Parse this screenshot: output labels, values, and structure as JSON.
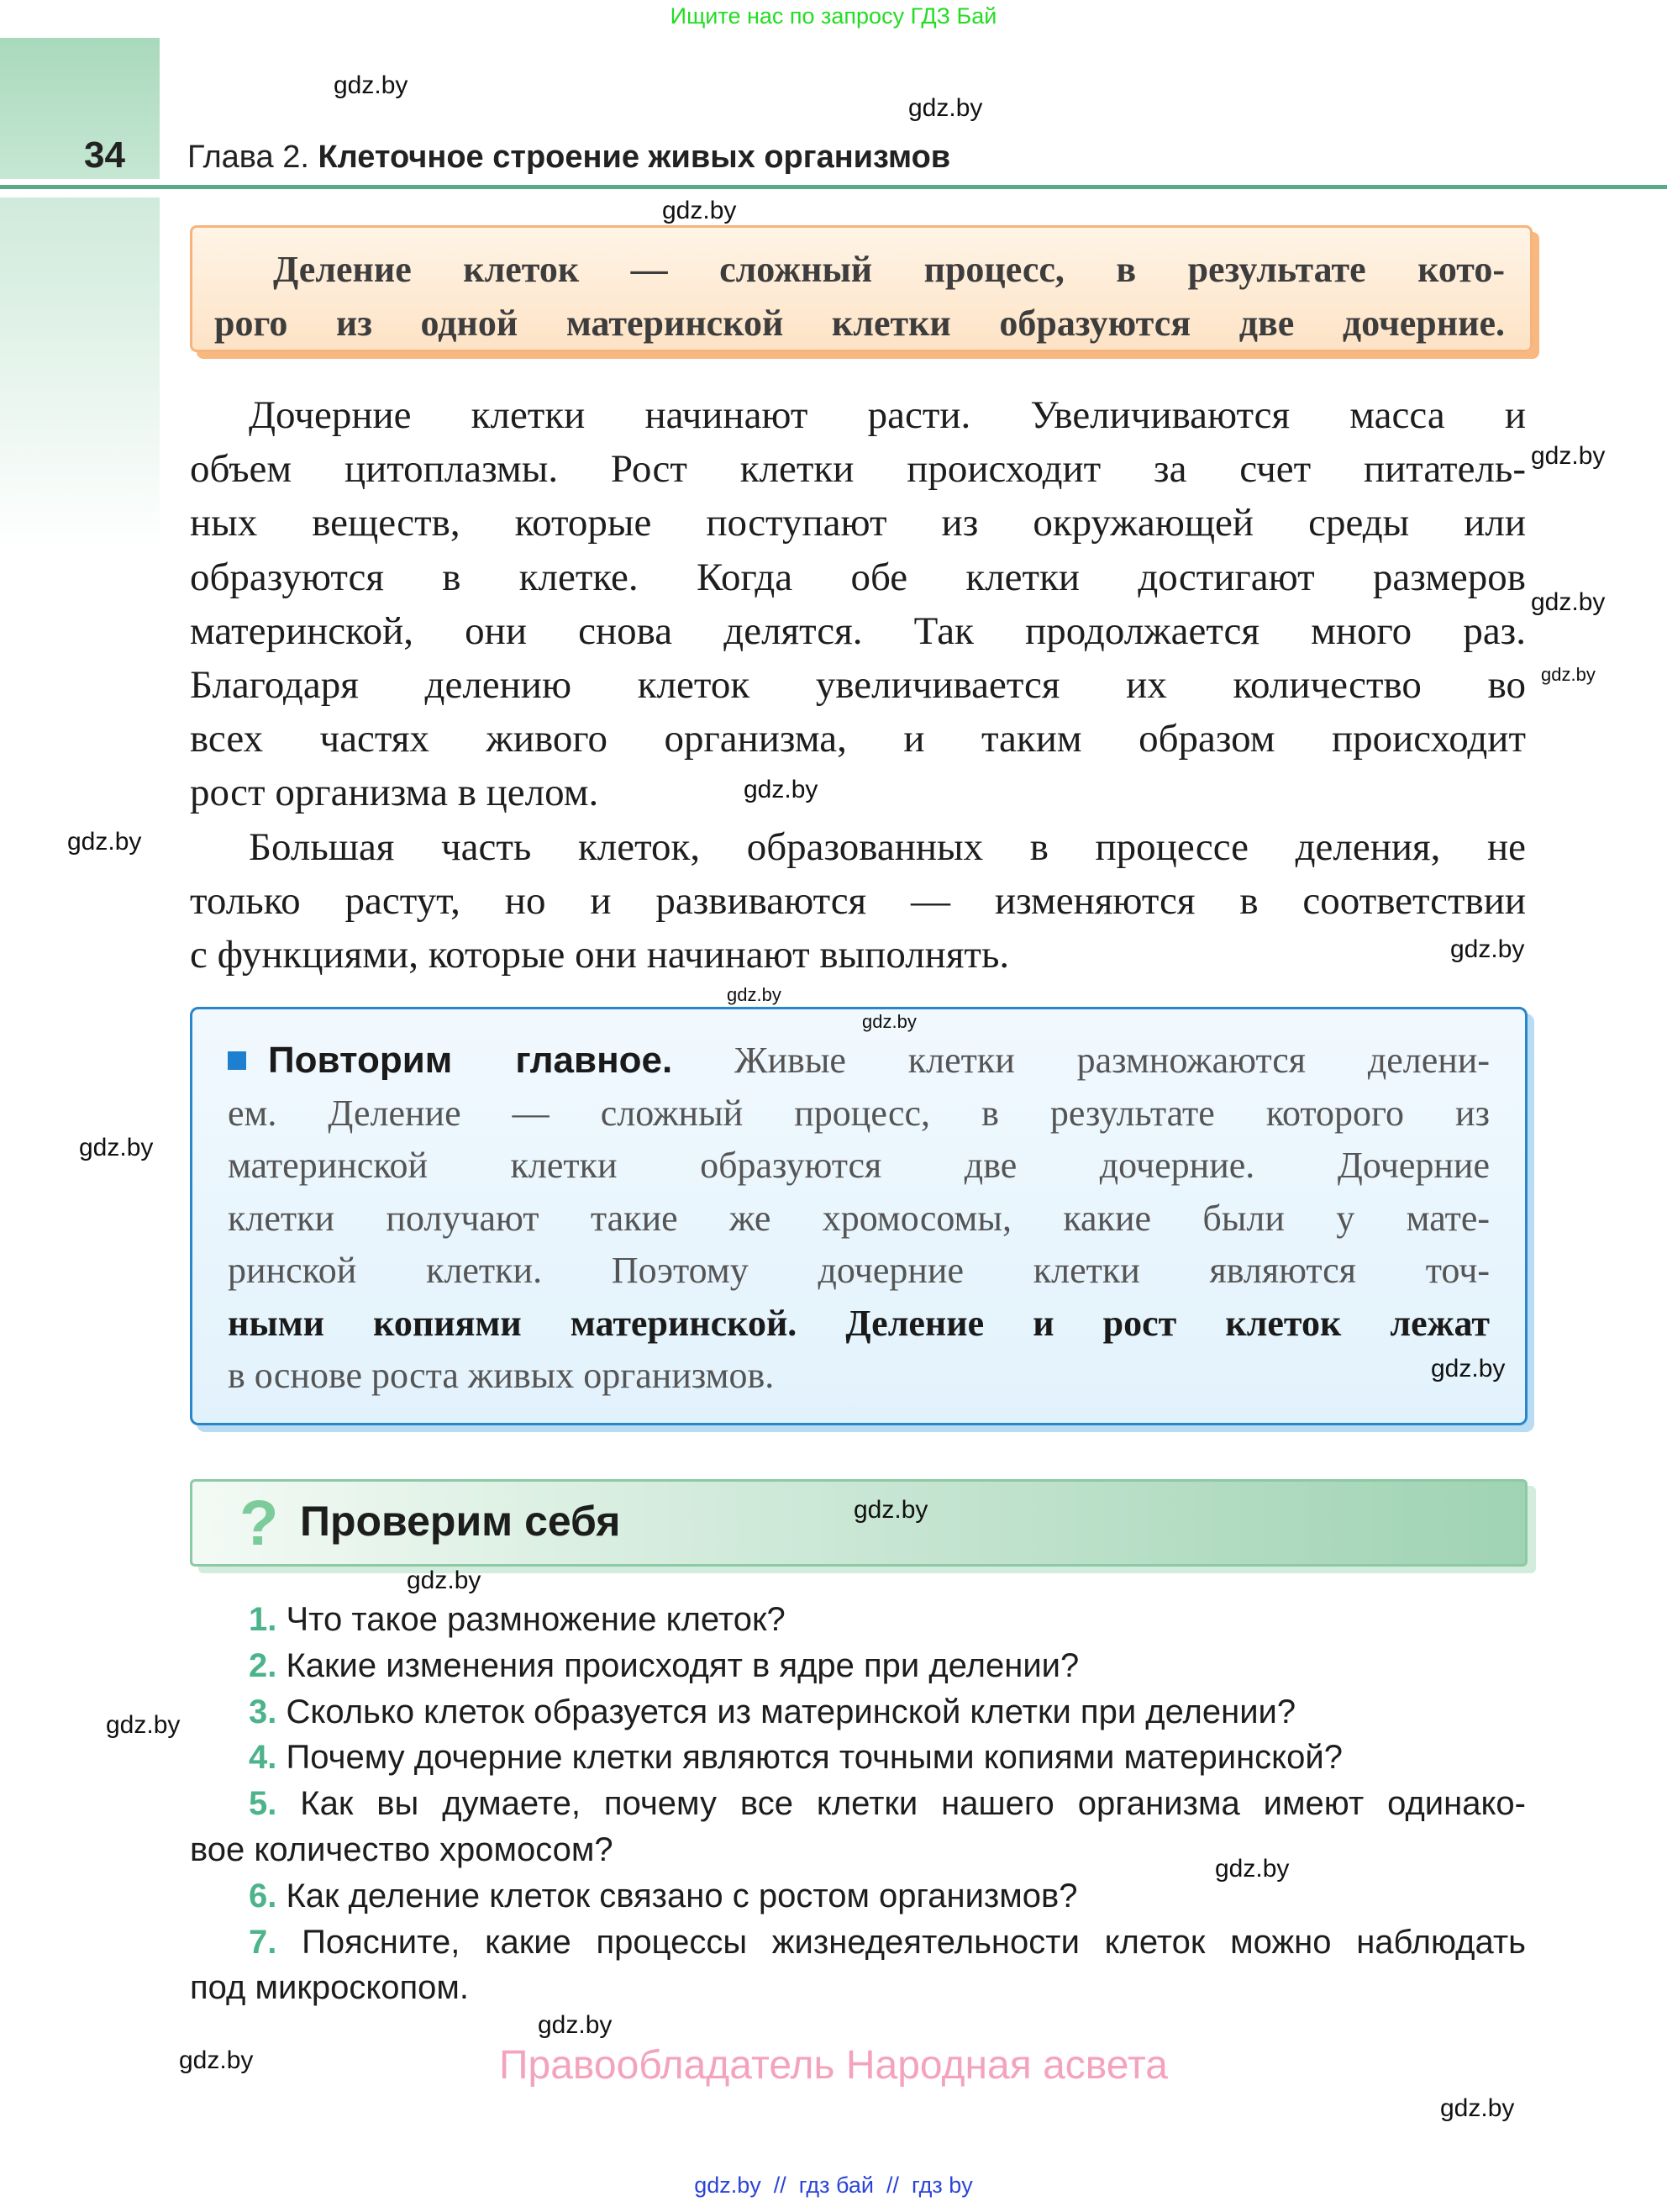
{
  "banner": "Ищите нас по запросу ГДЗ Бай",
  "header": {
    "page_number": "34",
    "chapter_prefix": "Глава 2.",
    "chapter_title": "Клеточное строение живых организмов"
  },
  "definition": {
    "lines": [
      "Деление клеток — сложный процесс, в результате кото-",
      "рого из одной материнской клетки образуются две дочерние."
    ]
  },
  "body": {
    "paragraph1": [
      "Дочерние клетки начинают расти. Увеличиваются масса и",
      "объем цитоплазмы. Рост клетки происходит за счет питатель-",
      "ных веществ, которые поступают из окружающей среды или",
      "образуются в клетке. Когда обе клетки достигают размеров",
      "материнской, они снова делятся. Так продолжается много раз.",
      "Благодаря делению клеток увеличивается их количество во",
      "всех частях живого организма, и таким образом происходит",
      "рост организма в целом."
    ],
    "paragraph2": [
      "Большая часть клеток, образованных в процессе деления, не",
      "только растут, но и развиваются — изменяются в соответствии",
      "с функциями, которые они начинают выполнять."
    ]
  },
  "summary": {
    "lead": "Повторим главное.",
    "lines": [
      " Живые клетки размножаются делени-",
      "ем. Деление — сложный процесс, в результате которого из",
      "материнской клетки образуются две дочерние. Дочерние",
      "клетки получают такие же хромосомы, какие были у мате-",
      "ринской клетки. Поэтому дочерние клетки являются точ-",
      "ными копиями материнской. Деление и рост клеток лежат",
      "в основе роста живых организмов."
    ]
  },
  "self_check": {
    "icon": "question-mark-icon",
    "title": "Проверим себя",
    "questions": [
      {
        "n": "1.",
        "lines": [
          "Что такое размножение клеток?"
        ]
      },
      {
        "n": "2.",
        "lines": [
          "Какие изменения происходят в ядре при делении?"
        ]
      },
      {
        "n": "3.",
        "lines": [
          "Сколько клеток образуется из материнской клетки при делении?"
        ]
      },
      {
        "n": "4.",
        "lines": [
          "Почему дочерние клетки являются точными копиями материнской?"
        ]
      },
      {
        "n": "5.",
        "lines": [
          "Как вы думаете, почему все клетки нашего организма имеют одинако-",
          "вое количество хромосом?"
        ]
      },
      {
        "n": "6.",
        "lines": [
          "Как деление клеток связано с ростом организмов?"
        ]
      },
      {
        "n": "7.",
        "lines": [
          "Поясните, какие процессы жизнедеятельности клеток можно наблюдать",
          "под микроскопом."
        ]
      }
    ]
  },
  "copyright": "Правообладатель Народная асвета",
  "footer": "gdz.by  //  гдз бай  //  гдз by",
  "watermark": "gdz.by",
  "colors": {
    "accent_green": "#4cb38a",
    "banner_green": "#22dd22",
    "blue_border": "#2a86c8",
    "orange_border": "#f7b37e",
    "copyright_pink": "#f4a3bd",
    "footer_blue": "#2b44d8"
  }
}
